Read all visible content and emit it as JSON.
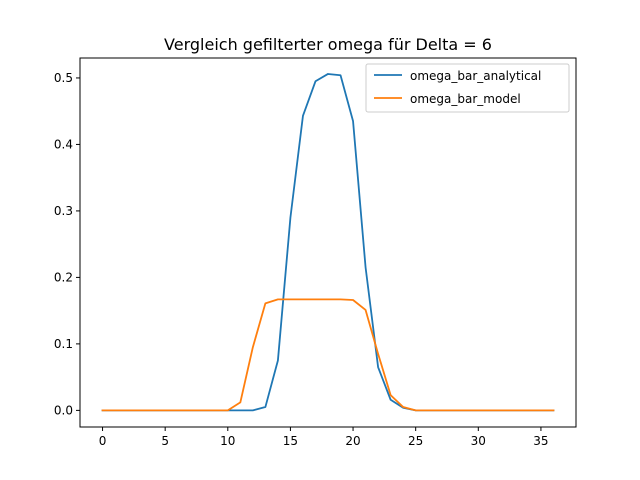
{
  "chart_data": {
    "type": "line",
    "title": "Vergleich gefilterter omega für Delta = 6",
    "xlabel": "",
    "ylabel": "",
    "xlim": [
      -1.8,
      37.8
    ],
    "ylim": [
      -0.025,
      0.53
    ],
    "x_ticks": [
      0,
      5,
      10,
      15,
      20,
      25,
      30,
      35
    ],
    "y_ticks": [
      0.0,
      0.1,
      0.2,
      0.3,
      0.4,
      0.5
    ],
    "x_tick_labels": [
      "0",
      "5",
      "10",
      "15",
      "20",
      "25",
      "30",
      "35"
    ],
    "y_tick_labels": [
      "0.0",
      "0.1",
      "0.2",
      "0.3",
      "0.4",
      "0.5"
    ],
    "grid": false,
    "legend_position": "upper right",
    "x": [
      0,
      1,
      2,
      3,
      4,
      5,
      6,
      7,
      8,
      9,
      10,
      11,
      12,
      13,
      14,
      15,
      16,
      17,
      18,
      19,
      20,
      21,
      22,
      23,
      24,
      25,
      26,
      27,
      28,
      29,
      30,
      31,
      32,
      33,
      34,
      35,
      36
    ],
    "series": [
      {
        "name": "omega_bar_analytical",
        "color": "#1f77b4",
        "values": [
          0,
          0,
          0,
          0,
          0,
          0,
          0,
          0,
          0,
          0,
          0,
          0,
          0,
          0.005,
          0.075,
          0.29,
          0.443,
          0.495,
          0.506,
          0.504,
          0.435,
          0.215,
          0.065,
          0.016,
          0.004,
          0,
          0,
          0,
          0,
          0,
          0,
          0,
          0,
          0,
          0,
          0,
          0
        ]
      },
      {
        "name": "omega_bar_model",
        "color": "#ff7f0e",
        "values": [
          0,
          0,
          0,
          0,
          0,
          0,
          0,
          0,
          0,
          0,
          0,
          0.012,
          0.095,
          0.161,
          0.167,
          0.167,
          0.167,
          0.167,
          0.167,
          0.167,
          0.166,
          0.151,
          0.085,
          0.023,
          0.005,
          0,
          0,
          0,
          0,
          0,
          0,
          0,
          0,
          0,
          0,
          0,
          0
        ]
      }
    ]
  }
}
